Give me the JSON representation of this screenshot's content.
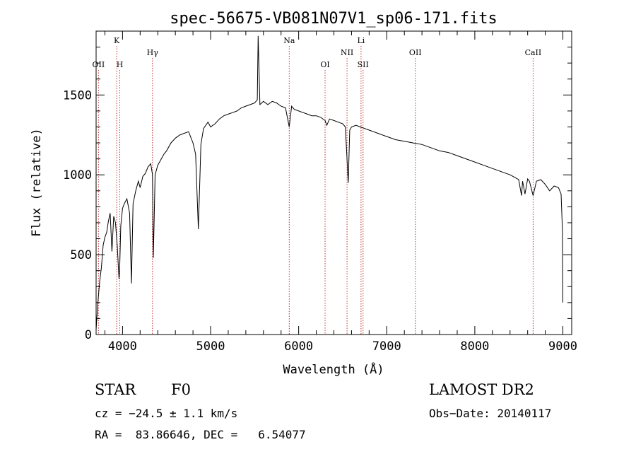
{
  "chart_data": {
    "type": "line",
    "title": "spec-56675-VB081N07V1_sp06-171.fits",
    "xlabel": "Wavelength (Å)",
    "ylabel": "Flux (relative)",
    "xlim": [
      3700,
      9100
    ],
    "ylim": [
      0,
      1900
    ],
    "x_ticks": [
      4000,
      5000,
      6000,
      7000,
      8000,
      9000
    ],
    "y_ticks": [
      0,
      500,
      1000,
      1500
    ],
    "grid": false,
    "series": [
      {
        "x": [
          3700,
          3720,
          3740,
          3760,
          3780,
          3800,
          3820,
          3840,
          3860,
          3880,
          3900,
          3920,
          3940,
          3960,
          3968,
          3980,
          4000,
          4020,
          4050,
          4080,
          4101,
          4120,
          4150,
          4180,
          4200,
          4230,
          4260,
          4290,
          4320,
          4340,
          4350,
          4370,
          4400,
          4430,
          4470,
          4500,
          4550,
          4600,
          4650,
          4700,
          4750,
          4800,
          4830,
          4861,
          4890,
          4920,
          4970,
          5000,
          5050,
          5100,
          5150,
          5200,
          5250,
          5300,
          5350,
          5400,
          5450,
          5500,
          5530,
          5540,
          5560,
          5600,
          5650,
          5700,
          5750,
          5800,
          5850,
          5893,
          5920,
          5950,
          6000,
          6050,
          6100,
          6150,
          6200,
          6250,
          6300,
          6320,
          6350,
          6400,
          6450,
          6500,
          6530,
          6563,
          6580,
          6600,
          6650,
          6700,
          6750,
          6800,
          6850,
          6900,
          6950,
          7000,
          7100,
          7200,
          7300,
          7400,
          7500,
          7600,
          7700,
          7800,
          7900,
          8000,
          8100,
          8200,
          8300,
          8400,
          8450,
          8498,
          8530,
          8542,
          8570,
          8600,
          8620,
          8662,
          8700,
          8750,
          8800,
          8850,
          8900,
          8950,
          8980,
          8995,
          9000
        ],
        "y": [
          30,
          200,
          330,
          420,
          560,
          610,
          640,
          710,
          760,
          520,
          740,
          700,
          560,
          350,
          420,
          680,
          790,
          820,
          850,
          760,
          320,
          820,
          900,
          960,
          920,
          990,
          1010,
          1050,
          1070,
          1000,
          480,
          1000,
          1060,
          1090,
          1130,
          1150,
          1200,
          1230,
          1250,
          1260,
          1270,
          1200,
          1130,
          660,
          1190,
          1290,
          1330,
          1300,
          1320,
          1350,
          1370,
          1380,
          1390,
          1400,
          1420,
          1430,
          1440,
          1450,
          1470,
          1870,
          1440,
          1460,
          1440,
          1460,
          1450,
          1430,
          1420,
          1300,
          1430,
          1410,
          1400,
          1390,
          1380,
          1370,
          1370,
          1360,
          1340,
          1310,
          1350,
          1340,
          1330,
          1320,
          1300,
          950,
          1280,
          1300,
          1310,
          1300,
          1290,
          1280,
          1270,
          1260,
          1250,
          1240,
          1220,
          1210,
          1200,
          1190,
          1170,
          1150,
          1140,
          1120,
          1100,
          1080,
          1060,
          1040,
          1020,
          1000,
          985,
          970,
          870,
          960,
          880,
          975,
          960,
          870,
          960,
          970,
          940,
          900,
          930,
          920,
          880,
          650,
          200
        ]
      }
    ],
    "line_markers": [
      {
        "label": "OII",
        "x": 3727,
        "row": 2
      },
      {
        "label": "K",
        "x": 3934,
        "row": 0
      },
      {
        "label": "H",
        "x": 3969,
        "row": 2
      },
      {
        "label": "Hγ",
        "x": 4340,
        "row": 1
      },
      {
        "label": "Na",
        "x": 5893,
        "row": 0
      },
      {
        "label": "OI",
        "x": 6300,
        "row": 2
      },
      {
        "label": "NII",
        "x": 6549,
        "row": 1
      },
      {
        "label": "Li",
        "x": 6708,
        "row": 0
      },
      {
        "label": "SII",
        "x": 6731,
        "row": 2
      },
      {
        "label": "OII",
        "x": 7325,
        "row": 1
      },
      {
        "label": "CaII",
        "x": 8662,
        "row": 1
      }
    ]
  },
  "info": {
    "class_label": "STAR",
    "subclass": "F0",
    "survey": "LAMOST DR2",
    "redshift_text": "cz = −24.5 ± 1.1 km/s",
    "obs_date": "Obs−Date: 20140117",
    "coords": "RA =  83.86646, DEC =   6.54077"
  }
}
